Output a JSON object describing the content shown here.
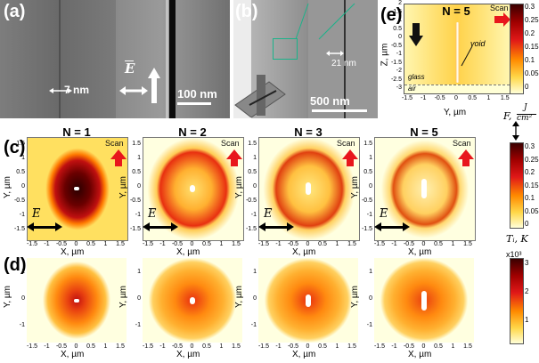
{
  "panel_labels": {
    "a": "(a)",
    "b": "(b)",
    "c": "(c)",
    "d": "(d)",
    "e": "(e)"
  },
  "sem_a": {
    "scale_top": "7 nm",
    "scale_bottom": "100 nm",
    "field": "E"
  },
  "sem_b": {
    "scale_main": "500 nm",
    "scale_inset": "21 nm"
  },
  "panel_e": {
    "title": "N = 5",
    "scan": "Scan",
    "void_label": "void",
    "glass_label": "glass",
    "air_label": "air",
    "ylabel": "Z, µm",
    "xlabel": "Y, µm",
    "yticks": [
      "2",
      "1.5",
      "1",
      "0.5",
      "0",
      "-0.5",
      "-1",
      "-1.5",
      "-2",
      "-2.5",
      "-3"
    ],
    "xticks": [
      "-1.5",
      "-1",
      "-0.5",
      "0",
      "0.5",
      "1",
      "1.5"
    ]
  },
  "row_c": {
    "titles": [
      "N = 1",
      "N = 2",
      "N = 3",
      "N = 5"
    ],
    "scan": "Scan",
    "field": "E",
    "ylabel": "Y, µm",
    "xlabel": "X, µm",
    "yticks": [
      "1.5",
      "1",
      "0.5",
      "0",
      "-0.5",
      "-1",
      "-1.5"
    ],
    "xticks": [
      "-1.5",
      "-1",
      "-0.5",
      "0",
      "0.5",
      "1",
      "1.5"
    ]
  },
  "row_d": {
    "ylabel": "Y, µm",
    "xlabel": "X, µm",
    "yticks": [
      "1",
      "0",
      "-1"
    ],
    "xticks": [
      "-1.5",
      "-1",
      "-0.5",
      "0",
      "0.5",
      "1",
      "1.5"
    ]
  },
  "colorbar_top": {
    "ticks": [
      "0.3",
      "0.25",
      "0.2",
      "0.15",
      "0.1",
      "0.05",
      "0"
    ]
  },
  "colorbar_mid": {
    "label_F": "F,",
    "label_J": "J",
    "label_cm2": "cm²",
    "ticks": [
      "0.3",
      "0.25",
      "0.2",
      "0.15",
      "0.1",
      "0.05",
      "0"
    ]
  },
  "colorbar_bot": {
    "label": "Tᵢ, K",
    "multiplier": "x10³",
    "ticks": [
      "3",
      "2",
      "1"
    ]
  },
  "colors": {
    "dark": "#3a0000",
    "red": "#d01818",
    "orange": "#ff8a00",
    "yellow": "#ffe14a",
    "pale": "#ffffd8"
  }
}
